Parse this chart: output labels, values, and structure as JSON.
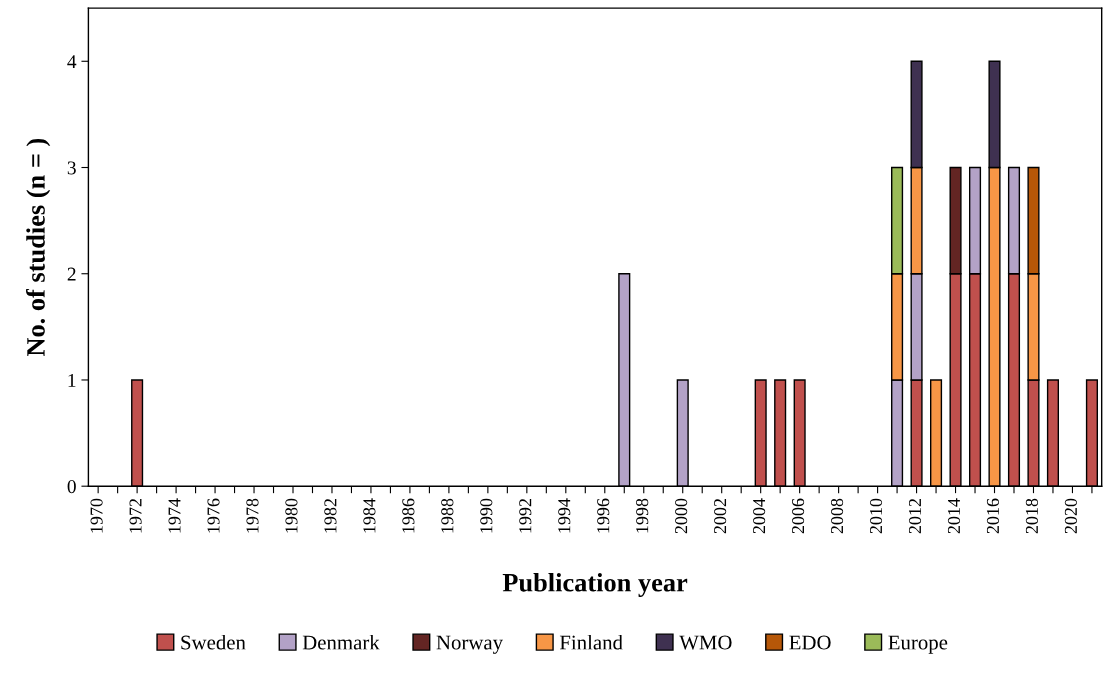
{
  "chart_data": {
    "type": "bar",
    "stacked": true,
    "xlabel": "Publication year",
    "ylabel": "No. of studies (n = )",
    "categories": [
      "1970",
      null,
      "1972",
      null,
      "1974",
      null,
      "1976",
      null,
      "1978",
      null,
      "1980",
      null,
      "1982",
      null,
      "1984",
      null,
      "1986",
      null,
      "1988",
      null,
      "1990",
      null,
      "1992",
      null,
      "1994",
      null,
      "1996",
      null,
      "1998",
      null,
      "2000",
      null,
      "2002",
      null,
      "2004",
      null,
      "2006",
      null,
      "2008",
      null,
      "2010",
      null,
      "2012",
      null,
      "2014",
      null,
      "2016",
      null,
      "2018",
      null,
      "2020",
      null
    ],
    "series": [
      {
        "name": "Sweden",
        "color": "#c0504d",
        "values": [
          null,
          null,
          1,
          null,
          null,
          null,
          null,
          null,
          null,
          null,
          null,
          null,
          null,
          null,
          null,
          null,
          null,
          null,
          null,
          null,
          null,
          null,
          null,
          null,
          null,
          null,
          null,
          null,
          null,
          null,
          null,
          null,
          null,
          null,
          1,
          1,
          1,
          null,
          null,
          null,
          null,
          null,
          1,
          null,
          2,
          2,
          null,
          2,
          1,
          1,
          null,
          1
        ]
      },
      {
        "name": "Denmark",
        "color": "#b3a2c7",
        "values": [
          null,
          null,
          null,
          null,
          null,
          null,
          null,
          null,
          null,
          null,
          null,
          null,
          null,
          null,
          null,
          null,
          null,
          null,
          null,
          null,
          null,
          null,
          null,
          null,
          null,
          null,
          null,
          2,
          null,
          null,
          1,
          null,
          null,
          null,
          null,
          null,
          null,
          null,
          null,
          null,
          null,
          1,
          1,
          null,
          null,
          1,
          null,
          1,
          null,
          null,
          null,
          null
        ]
      },
      {
        "name": "Norway",
        "color": "#632523",
        "values": [
          null,
          null,
          null,
          null,
          null,
          null,
          null,
          null,
          null,
          null,
          null,
          null,
          null,
          null,
          null,
          null,
          null,
          null,
          null,
          null,
          null,
          null,
          null,
          null,
          null,
          null,
          null,
          null,
          null,
          null,
          null,
          null,
          null,
          null,
          null,
          null,
          null,
          null,
          null,
          null,
          null,
          null,
          null,
          null,
          1,
          null,
          null,
          null,
          null,
          null,
          null,
          null
        ]
      },
      {
        "name": "Finland",
        "color": "#f79646",
        "values": [
          null,
          null,
          null,
          null,
          null,
          null,
          null,
          null,
          null,
          null,
          null,
          null,
          null,
          null,
          null,
          null,
          null,
          null,
          null,
          null,
          null,
          null,
          null,
          null,
          null,
          null,
          null,
          null,
          null,
          null,
          null,
          null,
          null,
          null,
          null,
          null,
          null,
          null,
          null,
          null,
          null,
          1,
          1,
          1,
          null,
          null,
          3,
          null,
          1,
          null,
          null,
          null
        ]
      },
      {
        "name": "WMO",
        "color": "#3f3151",
        "values": [
          null,
          null,
          null,
          null,
          null,
          null,
          null,
          null,
          null,
          null,
          null,
          null,
          null,
          null,
          null,
          null,
          null,
          null,
          null,
          null,
          null,
          null,
          null,
          null,
          null,
          null,
          null,
          null,
          null,
          null,
          null,
          null,
          null,
          null,
          null,
          null,
          null,
          null,
          null,
          null,
          null,
          null,
          1,
          null,
          null,
          null,
          1,
          null,
          null,
          null,
          null,
          null
        ]
      },
      {
        "name": "EDO",
        "color": "#b65708",
        "values": [
          null,
          null,
          null,
          null,
          null,
          null,
          null,
          null,
          null,
          null,
          null,
          null,
          null,
          null,
          null,
          null,
          null,
          null,
          null,
          null,
          null,
          null,
          null,
          null,
          null,
          null,
          null,
          null,
          null,
          null,
          null,
          null,
          null,
          null,
          null,
          null,
          null,
          null,
          null,
          null,
          null,
          null,
          null,
          null,
          null,
          null,
          null,
          null,
          1,
          null,
          null,
          null
        ]
      },
      {
        "name": "Europe",
        "color": "#9bbb59",
        "values": [
          null,
          null,
          null,
          null,
          null,
          null,
          null,
          null,
          null,
          null,
          null,
          null,
          null,
          null,
          null,
          null,
          null,
          null,
          null,
          null,
          null,
          null,
          null,
          null,
          null,
          null,
          null,
          null,
          null,
          null,
          null,
          null,
          null,
          null,
          null,
          null,
          null,
          null,
          null,
          null,
          null,
          1,
          null,
          null,
          null,
          null,
          null,
          null,
          null,
          null,
          null,
          null
        ]
      }
    ],
    "ylim": [
      0,
      4.5
    ],
    "yticks": [
      0,
      1,
      2,
      3,
      4
    ],
    "grid": false,
    "legend": "bottom"
  }
}
